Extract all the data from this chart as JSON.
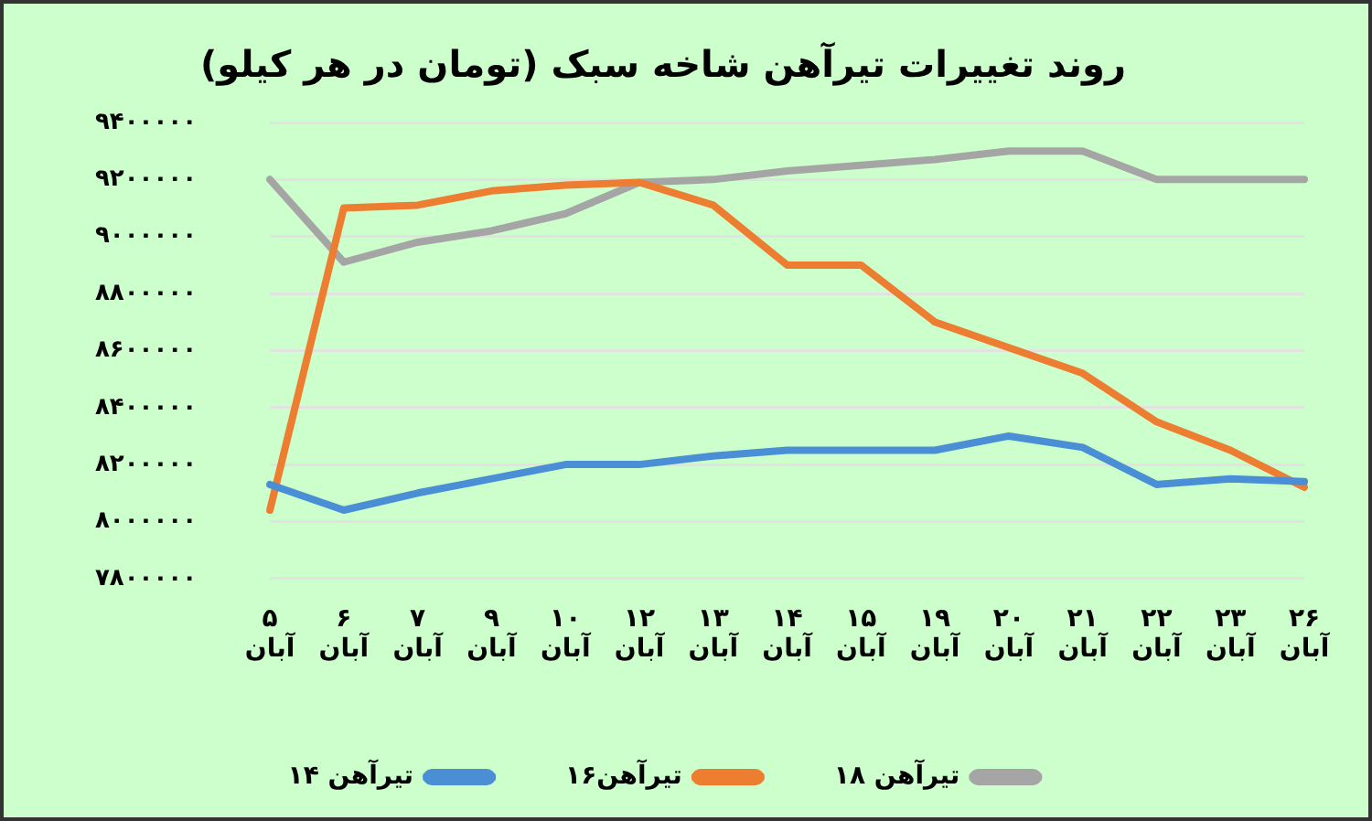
{
  "chart_data": {
    "type": "line",
    "title": "روند تغییرات تیرآهن شاخه سبک (تومان در هر کیلو)",
    "categories": [
      "۵ آبان",
      "۶ آبان",
      "۷ آبان",
      "۹ آبان",
      "۱۰ آبان",
      "۱۲ آبان",
      "۱۳ آبان",
      "۱۴ آبان",
      "۱۵ آبان",
      "۱۹ آبان",
      "۲۰ آبان",
      "۲۱ آبان",
      "۲۲ آبان",
      "۲۳ آبان",
      "۲۶ آبان"
    ],
    "series": [
      {
        "name": "تیرآهن ۱۴",
        "color": "#4a8fd6",
        "values": [
          8130000,
          8040000,
          8100000,
          8150000,
          8200000,
          8200000,
          8230000,
          8250000,
          8250000,
          8250000,
          8300000,
          8260000,
          8130000,
          8150000,
          8140000
        ]
      },
      {
        "name": "تیرآهن۱۶",
        "color": "#ed7d31",
        "values": [
          8040000,
          9100000,
          9110000,
          9160000,
          9180000,
          9190000,
          9110000,
          8900000,
          8900000,
          8700000,
          8610000,
          8520000,
          8350000,
          8250000,
          8120000
        ]
      },
      {
        "name": "تیرآهن ۱۸",
        "color": "#a5a5a5",
        "values": [
          9200000,
          8910000,
          8980000,
          9020000,
          9080000,
          9190000,
          9200000,
          9230000,
          9250000,
          9270000,
          9300000,
          9300000,
          9200000,
          9200000,
          9200000
        ]
      }
    ],
    "ylim": [
      7800000,
      9400000
    ],
    "yticks": [
      {
        "value": 7800000,
        "label": "۷۸۰۰۰۰۰"
      },
      {
        "value": 8000000,
        "label": "۸۰۰۰۰۰۰"
      },
      {
        "value": 8200000,
        "label": "۸۲۰۰۰۰۰"
      },
      {
        "value": 8400000,
        "label": "۸۴۰۰۰۰۰"
      },
      {
        "value": 8600000,
        "label": "۸۶۰۰۰۰۰"
      },
      {
        "value": 8800000,
        "label": "۸۸۰۰۰۰۰"
      },
      {
        "value": 9000000,
        "label": "۹۰۰۰۰۰۰"
      },
      {
        "value": 9200000,
        "label": "۹۲۰۰۰۰۰"
      },
      {
        "value": 9400000,
        "label": "۹۴۰۰۰۰۰"
      }
    ],
    "grid": "y",
    "legend": "bottom",
    "marker": "none",
    "line_style": "solid"
  }
}
